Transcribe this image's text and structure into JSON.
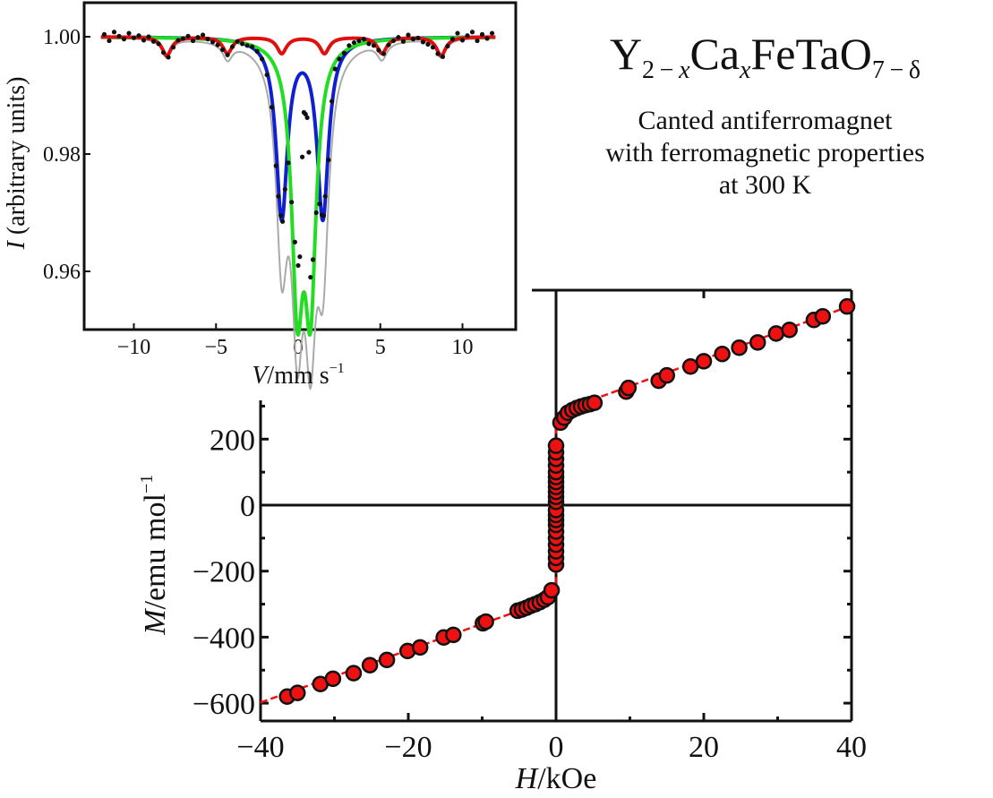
{
  "title": {
    "formula": {
      "parts": [
        {
          "text": "Y",
          "type": "main"
        },
        {
          "text": "2 − ",
          "type": "sub"
        },
        {
          "text": "x",
          "type": "sub-italic"
        },
        {
          "text": "Ca",
          "type": "main"
        },
        {
          "text": "x",
          "type": "sub-italic"
        },
        {
          "text": "FeTaO",
          "type": "main"
        },
        {
          "text": "7 − δ",
          "type": "sub"
        }
      ]
    },
    "subtitle_lines": [
      "Canted antiferromagnet",
      "with ferromagnetic properties",
      "at 300 K"
    ]
  },
  "chart_data": [
    {
      "id": "mossbauer",
      "type": "line",
      "title": "",
      "xlabel_italic": "V",
      "xlabel_rest": "/mm s",
      "xlabel_sup": "−1",
      "ylabel_italic": "I",
      "ylabel_rest": " (arbitrary units)",
      "xlim": [
        -12.9,
        13.1
      ],
      "ylim": [
        0.9495,
        1.006
      ],
      "xticks": [
        -10,
        -5,
        0,
        5,
        10
      ],
      "xtick_labels": [
        "−10",
        "−5",
        "0",
        "5",
        "10"
      ],
      "yticks": [
        0.96,
        0.98,
        1.0
      ],
      "ytick_labels": [
        "0.96",
        "0.98",
        "1.00"
      ],
      "grid": false,
      "colors": {
        "sextet": "#e01010",
        "doublet_blue": "#1020d0",
        "doublet_green": "#22dd22",
        "data": "#111111",
        "envelope": "#aaaaaa"
      },
      "series": [
        {
          "name": "sextet",
          "color": "#e01010",
          "components": [
            {
              "center": -8.0,
              "depth": 0.0032,
              "width": 0.35
            },
            {
              "center": -4.3,
              "depth": 0.0028,
              "width": 0.35
            },
            {
              "center": -1.0,
              "depth": 0.0028,
              "width": 0.35
            },
            {
              "center": 1.6,
              "depth": 0.0028,
              "width": 0.35
            },
            {
              "center": 5.1,
              "depth": 0.0028,
              "width": 0.35
            },
            {
              "center": 8.7,
              "depth": 0.0032,
              "width": 0.35
            }
          ]
        },
        {
          "name": "doublet-1",
          "color": "#1020d0",
          "components": [
            {
              "center": -1.0,
              "depth": 0.0305,
              "width": 0.42
            },
            {
              "center": 1.5,
              "depth": 0.0305,
              "width": 0.42
            }
          ]
        },
        {
          "name": "doublet-2",
          "color": "#22dd22",
          "components": [
            {
              "center": -0.05,
              "depth": 0.0415,
              "width": 0.42
            },
            {
              "center": 0.75,
              "depth": 0.0415,
              "width": 0.42
            }
          ]
        }
      ],
      "x_range": [
        -12,
        12
      ],
      "data_points_note": "black scatter points along 1.00 baseline with dips matching fitted envelope",
      "data_points": [
        [
          -11.8,
          1.0004
        ],
        [
          -11.5,
          0.9993
        ],
        [
          -11.2,
          1.0008
        ],
        [
          -10.9,
          1.0001
        ],
        [
          -10.6,
          0.9996
        ],
        [
          -10.3,
          1.0006
        ],
        [
          -10.0,
          0.9998
        ],
        [
          -9.7,
          1.0002
        ],
        [
          -9.4,
          0.9994
        ],
        [
          -9.1,
          1.0
        ],
        [
          -8.8,
          0.9992
        ],
        [
          -8.5,
          0.9988
        ],
        [
          -8.2,
          0.9973
        ],
        [
          -7.9,
          0.9965
        ],
        [
          -7.6,
          0.9982
        ],
        [
          -7.3,
          0.9994
        ],
        [
          -7.0,
          0.9997
        ],
        [
          -6.7,
          1.0001
        ],
        [
          -6.4,
          0.9993
        ],
        [
          -6.1,
          0.9999
        ],
        [
          -5.8,
          1.0003
        ],
        [
          -5.5,
          0.9996
        ],
        [
          -5.2,
          0.9991
        ],
        [
          -4.9,
          0.9986
        ],
        [
          -4.6,
          0.9978
        ],
        [
          -4.3,
          0.9969
        ],
        [
          -4.0,
          0.9983
        ],
        [
          -3.7,
          0.9992
        ],
        [
          -3.4,
          0.9988
        ],
        [
          -3.1,
          0.9985
        ],
        [
          -2.8,
          0.9983
        ],
        [
          -2.5,
          0.9975
        ],
        [
          -2.2,
          0.9962
        ],
        [
          -1.9,
          0.9935
        ],
        [
          -1.6,
          0.988
        ],
        [
          -1.35,
          0.978
        ],
        [
          -1.2,
          0.9728
        ],
        [
          -1.05,
          0.9695
        ],
        [
          -0.95,
          0.9685
        ],
        [
          -0.8,
          0.974
        ],
        [
          -0.6,
          0.9785
        ],
        [
          -0.4,
          0.9718
        ],
        [
          -0.2,
          0.965
        ],
        [
          0.0,
          0.961
        ],
        [
          0.1,
          0.9625
        ],
        [
          0.25,
          0.9795
        ],
        [
          0.35,
          0.9871
        ],
        [
          0.45,
          0.9868
        ],
        [
          0.55,
          0.9862
        ],
        [
          0.65,
          0.9803
        ],
        [
          0.75,
          0.959
        ],
        [
          0.9,
          0.962
        ],
        [
          1.1,
          0.97
        ],
        [
          1.3,
          0.9715
        ],
        [
          1.45,
          0.9696
        ],
        [
          1.55,
          0.9695
        ],
        [
          1.65,
          0.9728
        ],
        [
          1.85,
          0.979
        ],
        [
          2.05,
          0.989
        ],
        [
          2.25,
          0.9945
        ],
        [
          2.5,
          0.9962
        ],
        [
          2.8,
          0.9972
        ],
        [
          3.1,
          0.9985
        ],
        [
          3.4,
          0.999
        ],
        [
          3.7,
          0.9993
        ],
        [
          4.0,
          0.9996
        ],
        [
          4.3,
          0.9988
        ],
        [
          4.6,
          0.9985
        ],
        [
          4.9,
          0.9977
        ],
        [
          5.2,
          0.9971
        ],
        [
          5.5,
          0.9986
        ],
        [
          5.8,
          0.9993
        ],
        [
          6.1,
          0.9999
        ],
        [
          6.4,
          0.9992
        ],
        [
          6.7,
          1.0003
        ],
        [
          7.0,
          0.9996
        ],
        [
          7.3,
          0.9998
        ],
        [
          7.6,
          0.9991
        ],
        [
          7.9,
          0.9987
        ],
        [
          8.2,
          0.9982
        ],
        [
          8.5,
          0.9971
        ],
        [
          8.8,
          0.9966
        ],
        [
          9.1,
          0.9984
        ],
        [
          9.4,
          0.9996
        ],
        [
          9.7,
          1.0006
        ],
        [
          10.0,
          0.9994
        ],
        [
          10.3,
          1.0002
        ],
        [
          10.6,
          1.0008
        ],
        [
          10.9,
          0.9993
        ],
        [
          11.2,
          1.0004
        ],
        [
          11.5,
          0.9997
        ],
        [
          11.8,
          1.0006
        ]
      ]
    },
    {
      "id": "magnetization",
      "type": "scatter",
      "title": "",
      "xlabel_italic": "H",
      "xlabel_rest": "/kOe",
      "ylabel_italic": "M",
      "ylabel_rest": "/emu mol",
      "ylabel_sup": "−1",
      "xlim": [
        -40,
        40
      ],
      "ylim": [
        -650,
        715
      ],
      "xticks": [
        -40,
        -20,
        0,
        20,
        40
      ],
      "xtick_labels": [
        "−40",
        "−20",
        "0",
        "20",
        "40"
      ],
      "xminor": [
        -30,
        -10,
        10,
        30
      ],
      "yticks": [
        -600,
        -400,
        -200,
        0,
        200
      ],
      "ytick_labels": [
        "−600",
        "−400",
        "−200",
        "0",
        "200"
      ],
      "yminor": [
        -500,
        -300,
        -100,
        100,
        300,
        400,
        500,
        600
      ],
      "grid": false,
      "zero_lines": true,
      "marker_color": "#ee1111",
      "marker_edge": "#111111",
      "fit_line_color": "#ee1111",
      "fit_line": [
        [
          -40,
          -598
        ],
        [
          -5,
          -320
        ],
        [
          -0.3,
          -265
        ],
        [
          0,
          -250
        ],
        [
          0,
          250
        ],
        [
          0.3,
          265
        ],
        [
          5,
          320
        ],
        [
          40,
          605
        ]
      ],
      "points": [
        [
          -36.4,
          -580
        ],
        [
          -35.0,
          -569
        ],
        [
          -31.9,
          -542
        ],
        [
          -30.2,
          -526
        ],
        [
          -27.4,
          -509
        ],
        [
          -25.2,
          -485
        ],
        [
          -22.9,
          -469
        ],
        [
          -20.1,
          -442
        ],
        [
          -18.4,
          -431
        ],
        [
          -15.2,
          -401
        ],
        [
          -13.9,
          -393
        ],
        [
          -9.9,
          -358
        ],
        [
          -9.5,
          -353
        ],
        [
          -5.2,
          -320
        ],
        [
          -4.6,
          -316
        ],
        [
          -4.0,
          -311
        ],
        [
          -3.4,
          -305
        ],
        [
          -2.8,
          -300
        ],
        [
          -2.2,
          -294
        ],
        [
          -1.6,
          -287
        ],
        [
          -1.1,
          -279
        ],
        [
          -0.6,
          -258
        ],
        [
          0,
          -180
        ],
        [
          0,
          -160
        ],
        [
          0,
          -140
        ],
        [
          0,
          -120
        ],
        [
          0,
          -100
        ],
        [
          0,
          -80
        ],
        [
          0,
          -60
        ],
        [
          0,
          -45
        ],
        [
          0,
          -30
        ],
        [
          0,
          -15
        ],
        [
          0,
          10
        ],
        [
          0,
          25
        ],
        [
          0,
          40
        ],
        [
          0,
          55
        ],
        [
          0,
          70
        ],
        [
          0,
          85
        ],
        [
          0,
          100
        ],
        [
          0,
          120
        ],
        [
          0,
          140
        ],
        [
          0,
          160
        ],
        [
          0,
          180
        ],
        [
          0.6,
          250
        ],
        [
          1.1,
          265
        ],
        [
          1.6,
          280
        ],
        [
          2.2,
          288
        ],
        [
          2.8,
          294
        ],
        [
          3.4,
          299
        ],
        [
          4.0,
          303
        ],
        [
          4.6,
          306
        ],
        [
          5.2,
          310
        ],
        [
          9.5,
          344
        ],
        [
          9.8,
          355
        ],
        [
          13.9,
          377
        ],
        [
          15.0,
          393
        ],
        [
          18.2,
          420
        ],
        [
          20.0,
          436
        ],
        [
          22.5,
          458
        ],
        [
          24.8,
          477
        ],
        [
          27.3,
          493
        ],
        [
          29.8,
          520
        ],
        [
          31.6,
          531
        ],
        [
          34.9,
          561
        ],
        [
          36.1,
          572
        ],
        [
          39.4,
          602
        ]
      ]
    }
  ]
}
